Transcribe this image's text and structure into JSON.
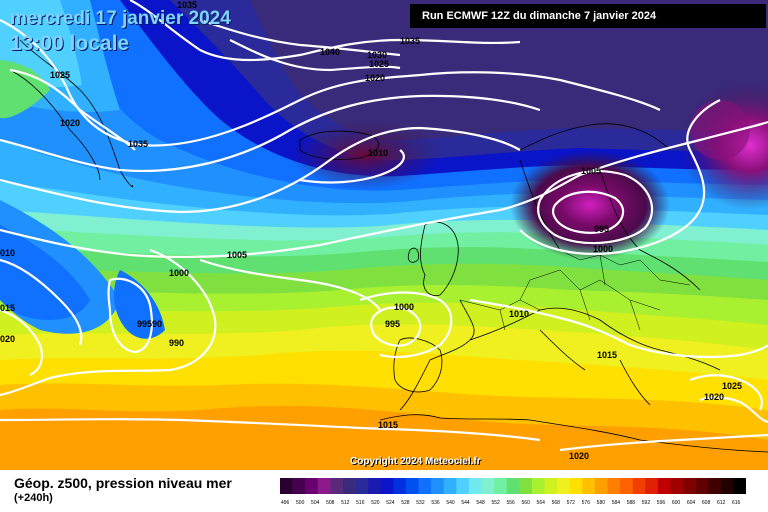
{
  "header": {
    "date_line": "mercredi 17 janvier 2024",
    "time_line": "13:00 locale",
    "run_info": "Run ECMWF 12Z du dimanche 7 janvier 2024"
  },
  "footer": {
    "field_title": "Géop. z500, pression niveau mer",
    "lead_time": "(+240h)",
    "copyright": "Copyright 2024 Meteociel.fr"
  },
  "legend": {
    "colors": [
      "#2a0030",
      "#47004f",
      "#6a006f",
      "#8c1a8c",
      "#5a2a7a",
      "#3a2a7a",
      "#2a2a9a",
      "#1a1ab0",
      "#0a14c8",
      "#0030e0",
      "#0050f0",
      "#1070ff",
      "#2090ff",
      "#30b0ff",
      "#50d0ff",
      "#70e8f0",
      "#80f0d0",
      "#70f0a0",
      "#60e070",
      "#80e040",
      "#a8f030",
      "#d0f020",
      "#f0f020",
      "#ffe000",
      "#ffc000",
      "#ffa000",
      "#ff8000",
      "#ff6000",
      "#f04000",
      "#e02000",
      "#c00000",
      "#a00000",
      "#800000",
      "#600000",
      "#400000",
      "#200000",
      "#000000"
    ],
    "ticks": [
      "496",
      "500",
      "504",
      "508",
      "512",
      "516",
      "520",
      "524",
      "528",
      "532",
      "536",
      "540",
      "544",
      "548",
      "552",
      "556",
      "560",
      "564",
      "568",
      "572",
      "576",
      "580",
      "584",
      "588",
      "592",
      "596",
      "600",
      "604",
      "608",
      "612",
      "616"
    ]
  },
  "isobar_labels": [
    {
      "id": "l1035a",
      "text": "1035"
    },
    {
      "id": "l1025a",
      "text": "1025"
    },
    {
      "id": "l1020a",
      "text": "1020"
    },
    {
      "id": "l1035b",
      "text": "1035"
    },
    {
      "id": "l1040",
      "text": "1040"
    },
    {
      "id": "l1030",
      "text": "1030"
    },
    {
      "id": "l1025b",
      "text": "1025"
    },
    {
      "id": "l1020b",
      "text": "1020"
    },
    {
      "id": "l1035c",
      "text": "1035"
    },
    {
      "id": "l1010a",
      "text": "1010"
    },
    {
      "id": "l1005a",
      "text": "1005"
    },
    {
      "id": "l995a",
      "text": "995"
    },
    {
      "id": "l1000a",
      "text": "1000"
    },
    {
      "id": "l1000b",
      "text": "1000"
    },
    {
      "id": "l1005b",
      "text": "1005"
    },
    {
      "id": "l010",
      "text": "010"
    },
    {
      "id": "l015",
      "text": "015"
    },
    {
      "id": "l020",
      "text": "020"
    },
    {
      "id": "l99590",
      "text": "99590"
    },
    {
      "id": "l990",
      "text": "990"
    },
    {
      "id": "l1000c",
      "text": "1000"
    },
    {
      "id": "l995b",
      "text": "995"
    },
    {
      "id": "l1010b",
      "text": "1010"
    },
    {
      "id": "l1015a",
      "text": "1015"
    },
    {
      "id": "l1015b",
      "text": "1015"
    },
    {
      "id": "l1020c",
      "text": "1020"
    },
    {
      "id": "l1020d",
      "text": "1020"
    },
    {
      "id": "l1025c",
      "text": "1025"
    }
  ]
}
